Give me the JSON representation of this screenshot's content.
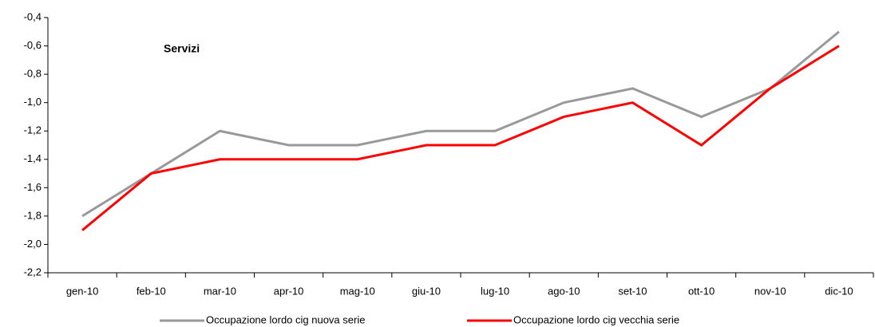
{
  "chart_data": {
    "type": "line",
    "annotation": "Servizi",
    "categories": [
      "gen-10",
      "feb-10",
      "mar-10",
      "apr-10",
      "mag-10",
      "giu-10",
      "lug-10",
      "ago-10",
      "set-10",
      "ott-10",
      "nov-10",
      "dic-10"
    ],
    "series": [
      {
        "name": "Occupazione lordo cig nuova serie",
        "color": "#999999",
        "values": [
          -1.8,
          -1.5,
          -1.2,
          -1.3,
          -1.3,
          -1.2,
          -1.2,
          -1.0,
          -0.9,
          -1.1,
          -0.9,
          -0.5
        ]
      },
      {
        "name": "Occupazione lordo cig vecchia serie",
        "color": "#ff0000",
        "values": [
          -1.9,
          -1.5,
          -1.4,
          -1.4,
          -1.4,
          -1.3,
          -1.3,
          -1.1,
          -1.0,
          -1.3,
          -0.9,
          -0.6
        ]
      }
    ],
    "ylim": [
      -2.2,
      -0.4
    ],
    "yticks": [
      {
        "value": -2.2,
        "label": "-2,2"
      },
      {
        "value": -2.0,
        "label": "-2,0"
      },
      {
        "value": -1.8,
        "label": "-1,8"
      },
      {
        "value": -1.6,
        "label": "-1,6"
      },
      {
        "value": -1.4,
        "label": "-1,4"
      },
      {
        "value": -1.2,
        "label": "-1,2"
      },
      {
        "value": -1.0,
        "label": "-1,0"
      },
      {
        "value": -0.8,
        "label": "-0,8"
      },
      {
        "value": -0.6,
        "label": "-0,6"
      },
      {
        "value": -0.4,
        "label": "-0,4"
      }
    ],
    "grid": false
  }
}
